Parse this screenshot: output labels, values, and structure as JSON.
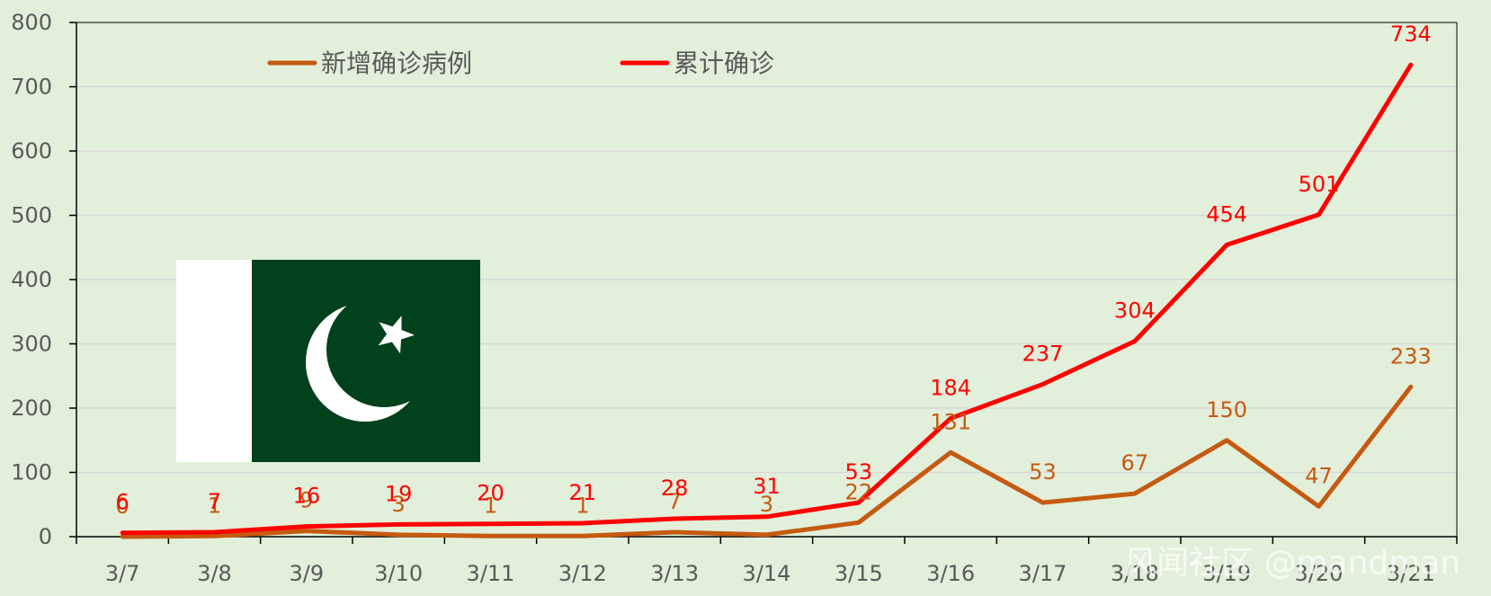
{
  "chart_data": {
    "type": "line",
    "categories": [
      "3/7",
      "3/8",
      "3/9",
      "3/10",
      "3/11",
      "3/12",
      "3/13",
      "3/14",
      "3/15",
      "3/16",
      "3/17",
      "3/18",
      "3/19",
      "3/20",
      "3/21"
    ],
    "series": [
      {
        "name": "新增确诊病例",
        "color": "#c55a11",
        "values": [
          0,
          1,
          9,
          3,
          1,
          1,
          7,
          3,
          22,
          131,
          53,
          67,
          150,
          47,
          233
        ]
      },
      {
        "name": "累计确诊",
        "color": "#ff0000",
        "values": [
          6,
          7,
          16,
          19,
          20,
          21,
          28,
          31,
          53,
          184,
          237,
          304,
          454,
          501,
          734
        ]
      }
    ],
    "ylim": [
      0,
      800
    ],
    "yticks": [
      0,
      100,
      200,
      300,
      400,
      500,
      600,
      700,
      800
    ],
    "grid": true,
    "legend_position": "top-left"
  },
  "flag": {
    "name": "pakistan-flag",
    "green": "#01411c",
    "white": "#ffffff"
  },
  "watermark": "风闻社区 @mandman"
}
